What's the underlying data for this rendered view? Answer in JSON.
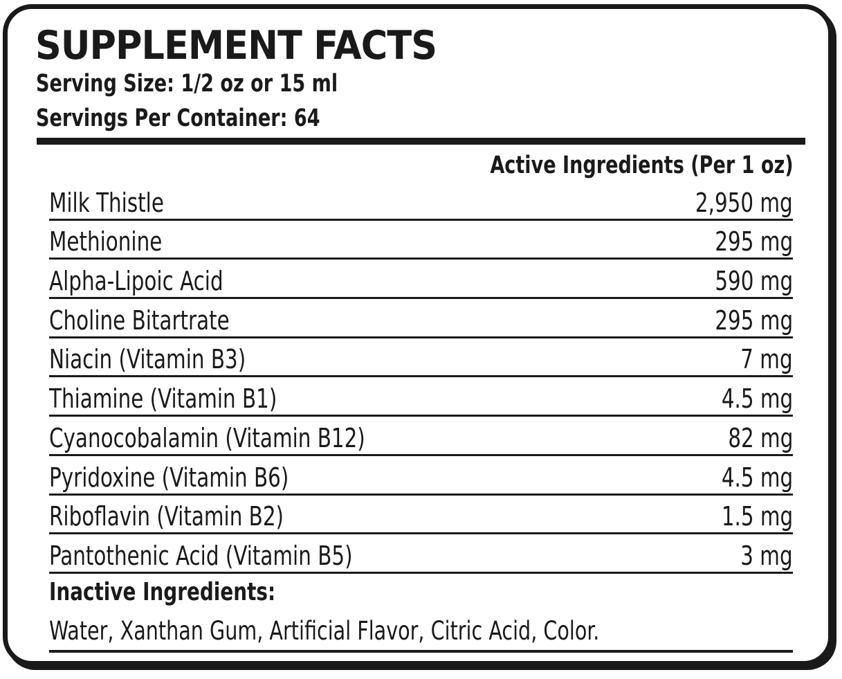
{
  "label": {
    "title": "SUPPLEMENT FACTS",
    "serving_size": "Serving Size: 1/2 oz or 15 ml",
    "servings_per_container": "Servings Per Container: 64",
    "column_header": "Active Ingredients  (Per  1  oz)",
    "ingredients": [
      {
        "name": "Milk Thistle",
        "amount": "2,950 mg"
      },
      {
        "name": "Methionine",
        "amount": "295 mg"
      },
      {
        "name": "Alpha-Lipoic Acid",
        "amount": "590 mg"
      },
      {
        "name": "Choline Bitartrate",
        "amount": "295 mg"
      },
      {
        "name": "Niacin (Vitamin B3)",
        "amount": "7 mg"
      },
      {
        "name": "Thiamine (Vitamin B1)",
        "amount": "4.5 mg"
      },
      {
        "name": "Cyanocobalamin (Vitamin B12)",
        "amount": "82 mg"
      },
      {
        "name": "Pyridoxine (Vitamin B6)",
        "amount": "4.5 mg"
      },
      {
        "name": "Riboflavin (Vitamin B2)",
        "amount": "1.5 mg"
      },
      {
        "name": "Pantothenic Acid (Vitamin B5)",
        "amount": "3 mg"
      }
    ],
    "inactive_title": "Inactive Ingredients:",
    "inactive_list": "Water, Xanthan Gum, Artificial Flavor, Citric Acid, Color."
  }
}
